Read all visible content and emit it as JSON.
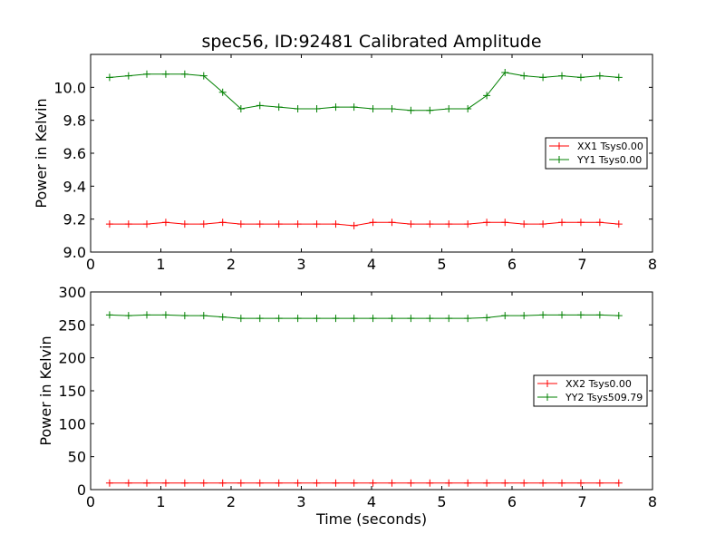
{
  "chart_data": [
    {
      "type": "line",
      "title": "spec56, ID:92481 Calibrated Amplitude",
      "xlabel": "",
      "ylabel": "Power in Kelvin",
      "xlim": [
        0,
        8
      ],
      "ylim": [
        9.0,
        10.2
      ],
      "xticks": [
        "0",
        "1",
        "2",
        "3",
        "4",
        "5",
        "6",
        "7",
        "8"
      ],
      "yticks": [
        "9.0",
        "9.2",
        "9.4",
        "9.6",
        "9.8",
        "10.0"
      ],
      "legend_position": "center-right",
      "grid": false,
      "x": [
        0.27,
        0.54,
        0.8,
        1.07,
        1.34,
        1.61,
        1.88,
        2.14,
        2.41,
        2.68,
        2.95,
        3.22,
        3.49,
        3.75,
        4.02,
        4.29,
        4.56,
        4.83,
        5.1,
        5.37,
        5.64,
        5.9,
        6.17,
        6.44,
        6.71,
        6.98,
        7.25,
        7.52
      ],
      "series": [
        {
          "name": "XX1 Tsys0.00",
          "color": "#ff0000",
          "values": [
            9.17,
            9.17,
            9.17,
            9.18,
            9.17,
            9.17,
            9.18,
            9.17,
            9.17,
            9.17,
            9.17,
            9.17,
            9.17,
            9.16,
            9.18,
            9.18,
            9.17,
            9.17,
            9.17,
            9.17,
            9.18,
            9.18,
            9.17,
            9.17,
            9.18,
            9.18,
            9.18,
            9.17
          ]
        },
        {
          "name": "YY1 Tsys0.00",
          "color": "#008000",
          "values": [
            10.06,
            10.07,
            10.08,
            10.08,
            10.08,
            10.07,
            9.97,
            9.87,
            9.89,
            9.88,
            9.87,
            9.87,
            9.88,
            9.88,
            9.87,
            9.87,
            9.86,
            9.86,
            9.87,
            9.87,
            9.95,
            10.09,
            10.07,
            10.06,
            10.07,
            10.06,
            10.07,
            10.06
          ]
        }
      ]
    },
    {
      "type": "line",
      "title": "",
      "xlabel": "Time (seconds)",
      "ylabel": "Power in Kelvin",
      "xlim": [
        0,
        8
      ],
      "ylim": [
        0,
        300
      ],
      "xticks": [
        "0",
        "1",
        "2",
        "3",
        "4",
        "5",
        "6",
        "7",
        "8"
      ],
      "yticks": [
        "0",
        "50",
        "100",
        "150",
        "200",
        "250",
        "300"
      ],
      "legend_position": "center-right",
      "grid": false,
      "x": [
        0.27,
        0.54,
        0.8,
        1.07,
        1.34,
        1.61,
        1.88,
        2.14,
        2.41,
        2.68,
        2.95,
        3.22,
        3.49,
        3.75,
        4.02,
        4.29,
        4.56,
        4.83,
        5.1,
        5.37,
        5.64,
        5.9,
        6.17,
        6.44,
        6.71,
        6.98,
        7.25,
        7.52
      ],
      "series": [
        {
          "name": "XX2 Tsys0.00",
          "color": "#ff0000",
          "values": [
            10,
            10,
            10,
            10,
            10,
            10,
            10,
            10,
            10,
            10,
            10,
            10,
            10,
            10,
            10,
            10,
            10,
            10,
            10,
            10,
            10,
            10,
            10,
            10,
            10,
            10,
            10,
            10
          ]
        },
        {
          "name": "YY2 Tsys509.79",
          "color": "#008000",
          "values": [
            265,
            264,
            265,
            265,
            264,
            264,
            262,
            260,
            260,
            260,
            260,
            260,
            260,
            260,
            260,
            260,
            260,
            260,
            260,
            260,
            261,
            264,
            264,
            265,
            265,
            265,
            265,
            264
          ]
        }
      ]
    }
  ]
}
